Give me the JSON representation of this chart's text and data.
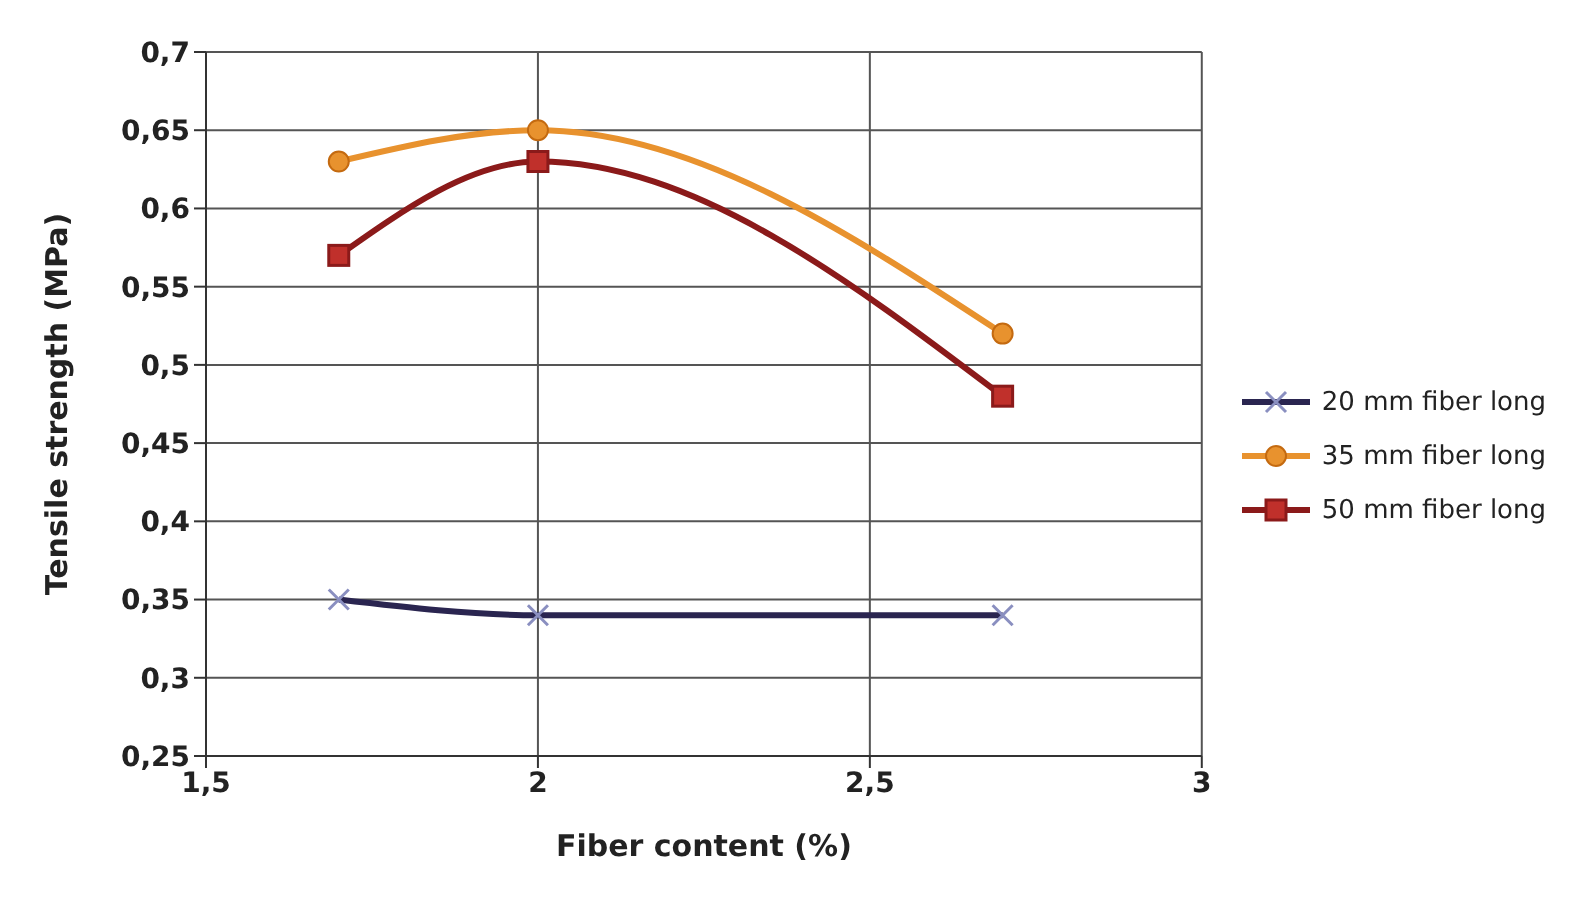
{
  "chart_data": {
    "type": "line",
    "xlabel": "Fiber content (%)",
    "ylabel": "Tensile strength (MPa)",
    "xlim": [
      1.5,
      3
    ],
    "xticks": [
      {
        "value": 1.5,
        "label": "1,5"
      },
      2,
      {
        "value": 2.5,
        "label": "2,5"
      },
      3
    ],
    "ylim": [
      0.25,
      0.7
    ],
    "yticks": [
      {
        "value": 0.25,
        "label": "0,25"
      },
      {
        "value": 0.3,
        "label": "0,3"
      },
      {
        "value": 0.35,
        "label": "0,35"
      },
      {
        "value": 0.4,
        "label": "0,4"
      },
      {
        "value": 0.45,
        "label": "0,45"
      },
      {
        "value": 0.5,
        "label": "0,5"
      },
      {
        "value": 0.55,
        "label": "0,55"
      },
      {
        "value": 0.6,
        "label": "0,6"
      },
      {
        "value": 0.65,
        "label": "0,65"
      },
      {
        "value": 0.7,
        "label": "0,7"
      }
    ],
    "grid": true,
    "legend": "right",
    "line_style": "solid",
    "series": [
      {
        "name": "20 mm fiber long",
        "color": "#2a2550",
        "marker": "cross",
        "x": [
          1.7,
          2,
          2.7
        ],
        "values": [
          0.35,
          0.34,
          0.34
        ]
      },
      {
        "name": "35 mm fiber long",
        "color": "#e8922e",
        "marker": "circle",
        "x": [
          1.7,
          2,
          2.7
        ],
        "values": [
          0.63,
          0.65,
          0.52
        ]
      },
      {
        "name": "50 mm fiber long",
        "color": "#8b1a1a",
        "marker": "square",
        "x": [
          1.7,
          2,
          2.7
        ],
        "values": [
          0.57,
          0.63,
          0.48
        ]
      }
    ]
  }
}
